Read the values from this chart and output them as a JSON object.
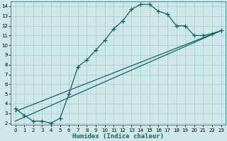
{
  "title": "",
  "xlabel": "Humidex (Indice chaleur)",
  "bg_color": "#cce8e8",
  "grid_color": "#aacccc",
  "line_color": "#1a6060",
  "xlim": [
    -0.5,
    23.5
  ],
  "ylim": [
    1.8,
    14.5
  ],
  "xticks": [
    0,
    1,
    2,
    3,
    4,
    5,
    6,
    7,
    8,
    9,
    10,
    11,
    12,
    13,
    14,
    15,
    16,
    17,
    18,
    19,
    20,
    21,
    22,
    23
  ],
  "yticks": [
    2,
    3,
    4,
    5,
    6,
    7,
    8,
    9,
    10,
    11,
    12,
    13,
    14
  ],
  "curve1_x": [
    0,
    1,
    2,
    3,
    4,
    5,
    6,
    7,
    8,
    9,
    10,
    11,
    12,
    13,
    14,
    15,
    16,
    17,
    18,
    19,
    20,
    21,
    22,
    23
  ],
  "curve1_y": [
    3.5,
    2.8,
    2.2,
    2.2,
    2.0,
    2.5,
    5.0,
    7.8,
    8.5,
    9.5,
    10.5,
    11.7,
    12.5,
    13.7,
    14.2,
    14.2,
    13.5,
    13.2,
    12.0,
    12.0,
    11.0,
    11.0,
    11.2,
    11.5
  ],
  "line2_x": [
    0,
    23
  ],
  "line2_y": [
    2.2,
    11.5
  ],
  "line3_x": [
    0,
    23
  ],
  "line3_y": [
    3.2,
    11.5
  ],
  "marker": "+",
  "markersize": 4,
  "markeredgewidth": 0.9,
  "linewidth": 0.9,
  "tick_fontsize": 5,
  "xlabel_fontsize": 6.5
}
